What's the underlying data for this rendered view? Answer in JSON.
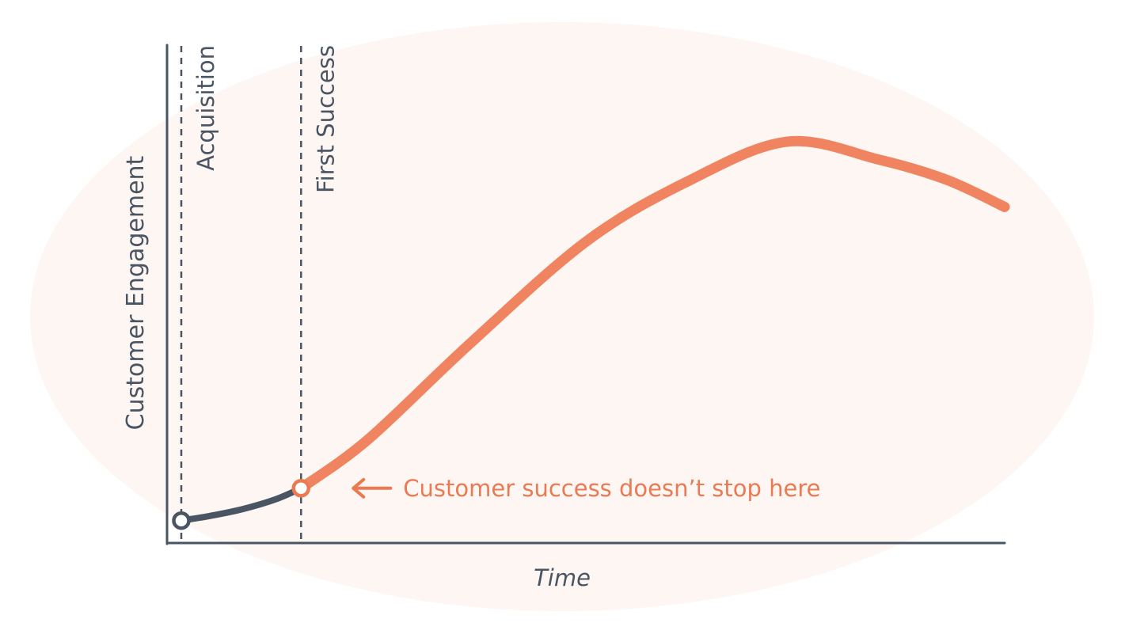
{
  "colors": {
    "background_blob": "#FDF6F3",
    "axis": "#4A5563",
    "early_segment": "#4A5563",
    "curve": "#F08461",
    "annotation": "#EB7A53"
  },
  "chart_data": {
    "type": "line",
    "xlabel": "Time",
    "ylabel": "Customer Engagement",
    "grid": false,
    "xlim": [
      0,
      100
    ],
    "ylim": [
      0,
      100
    ],
    "milestones": [
      {
        "label": "Acquisition",
        "x": 1.7
      },
      {
        "label": "First Success",
        "x": 16
      }
    ],
    "series": [
      {
        "segment": "before-first-success",
        "x": [
          1.7,
          5,
          9,
          13,
          16
        ],
        "y": [
          4.5,
          5.4,
          6.8,
          8.8,
          11
        ]
      },
      {
        "segment": "after-first-success",
        "x": [
          16,
          24,
          36,
          50,
          62,
          74,
          85,
          93,
          100
        ],
        "y": [
          11,
          20.8,
          39.8,
          60.5,
          72.5,
          80.6,
          77,
          73,
          67.5
        ]
      }
    ],
    "markers": [
      {
        "x": 1.7,
        "y": 4.5,
        "color": "#4A5563"
      },
      {
        "x": 16,
        "y": 11,
        "color": "#EB7A53"
      }
    ],
    "annotations": [
      {
        "text": "Customer success doesn’t stop here",
        "x": 16,
        "y": 11,
        "arrow": "left"
      }
    ]
  }
}
